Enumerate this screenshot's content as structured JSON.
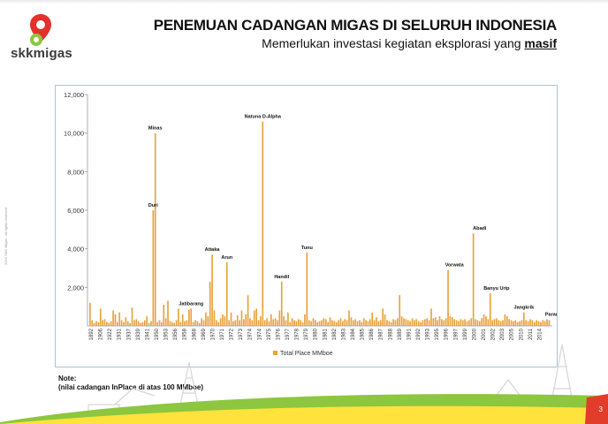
{
  "header": {
    "logo_text": "skkmigas",
    "title": "PENEMUAN CADANGAN MIGAS DI SELURUH INDONESIA",
    "subtitle_text": "Memerlukan investasi kegiatan eksplorasi yang ",
    "subtitle_emphasis": "masif"
  },
  "note": {
    "title": "Note:",
    "text": "(nilai cadangan InPlace di atas 100 MMboe)"
  },
  "side_text": "2016 SKK Migas - all rights reserved",
  "page_number": "3",
  "colors": {
    "bar": "#e8a33b",
    "axis": "#9a9a9a",
    "footer_green": "#8dc63f",
    "footer_yellow": "#ffe23b",
    "footer_red": "#e23d2b",
    "logo_red": "#e4312b",
    "logo_green": "#8dc63f"
  },
  "chart_data": {
    "type": "bar",
    "title": "",
    "xlabel": "",
    "ylabel": "",
    "ylim": [
      0,
      12000
    ],
    "y_ticks": [
      2000,
      4000,
      6000,
      8000,
      10000,
      12000
    ],
    "y_tick_labels": [
      "2,000",
      "4,000",
      "6,000",
      "8,000",
      "10,000",
      "12,000"
    ],
    "x_tick_labels": [
      "1892",
      "1906",
      "1922",
      "1931",
      "1937",
      "1939",
      "1941",
      "1950",
      "1953",
      "1956",
      "1958",
      "1968",
      "1969",
      "1970",
      "1971",
      "1972",
      "1973",
      "1974",
      "1974",
      "1975",
      "1976",
      "1977",
      "1978",
      "1979",
      "1980",
      "1981",
      "1982",
      "1983",
      "1984",
      "1985",
      "1986",
      "1987",
      "1988",
      "1989",
      "1991",
      "1992",
      "1993",
      "1995",
      "1996",
      "1997",
      "1999",
      "2000",
      "2001",
      "2002",
      "2003",
      "2005",
      "2010",
      "2011",
      "2014"
    ],
    "legend": {
      "position": "bottom",
      "label": "Total Place MMboe"
    },
    "series": [
      {
        "name": "Total Place MMboe",
        "values": [
          1200,
          300,
          150,
          250,
          200,
          900,
          300,
          350,
          200,
          150,
          250,
          800,
          600,
          200,
          700,
          300,
          200,
          450,
          250,
          150,
          950,
          300,
          350,
          250,
          150,
          200,
          300,
          500,
          150,
          250,
          6000,
          10000,
          200,
          300,
          200,
          1100,
          400,
          1300,
          250,
          200,
          150,
          300,
          900,
          200,
          600,
          250,
          300,
          850,
          900,
          200,
          300,
          250,
          150,
          400,
          300,
          700,
          500,
          2300,
          3700,
          800,
          300,
          200,
          400,
          600,
          500,
          3300,
          300,
          700,
          250,
          300,
          550,
          300,
          800,
          350,
          600,
          1600,
          400,
          300,
          800,
          900,
          300,
          500,
          10600,
          300,
          400,
          250,
          600,
          350,
          400,
          300,
          800,
          2300,
          500,
          300,
          700,
          200,
          400,
          300,
          250,
          350,
          300,
          200,
          600,
          3800,
          300,
          250,
          400,
          300,
          200,
          250,
          300,
          400,
          350,
          200,
          450,
          300,
          250,
          200,
          300,
          400,
          250,
          350,
          300,
          800,
          450,
          300,
          350,
          250,
          300,
          200,
          400,
          300,
          250,
          350,
          700,
          300,
          450,
          250,
          300,
          900,
          600,
          300,
          250,
          200,
          350,
          300,
          400,
          1600,
          500,
          400,
          350,
          300,
          250,
          400,
          300,
          350,
          250,
          200,
          300,
          350,
          400,
          300,
          900,
          400,
          450,
          300,
          500,
          350,
          300,
          400,
          2900,
          500,
          450,
          350,
          300,
          250,
          350,
          300,
          350,
          250,
          300,
          400,
          4800,
          350,
          300,
          250,
          400,
          600,
          500,
          350,
          1700,
          300,
          350,
          400,
          300,
          250,
          300,
          600,
          500,
          350,
          300,
          250,
          300,
          200,
          250,
          300,
          700,
          300,
          250,
          350,
          300,
          200,
          300,
          250,
          200,
          300,
          250,
          350,
          300
        ],
        "annotations": [
          {
            "label": "Duri",
            "index": 30,
            "value": 6000
          },
          {
            "label": "Minas",
            "index": 31,
            "value": 10000
          },
          {
            "label": "Jatibarang",
            "index": 48,
            "value": 900
          },
          {
            "label": "Attaka",
            "index": 58,
            "value": 3700
          },
          {
            "label": "Arun",
            "index": 65,
            "value": 3300
          },
          {
            "label": "Natuna D-Alpha",
            "index": 82,
            "value": 10600
          },
          {
            "label": "Handil",
            "index": 91,
            "value": 2300
          },
          {
            "label": "Tunu",
            "index": 103,
            "value": 3800
          },
          {
            "label": "Vorwata",
            "index": 173,
            "value": 2900
          },
          {
            "label": "Abadi",
            "index": 185,
            "value": 4800
          },
          {
            "label": "Banyu Urip",
            "index": 193,
            "value": 1700
          },
          {
            "label": "Jangkrik",
            "index": 206,
            "value": 700
          },
          {
            "label": "Parang",
            "index": 220,
            "value": 350
          }
        ]
      }
    ]
  }
}
